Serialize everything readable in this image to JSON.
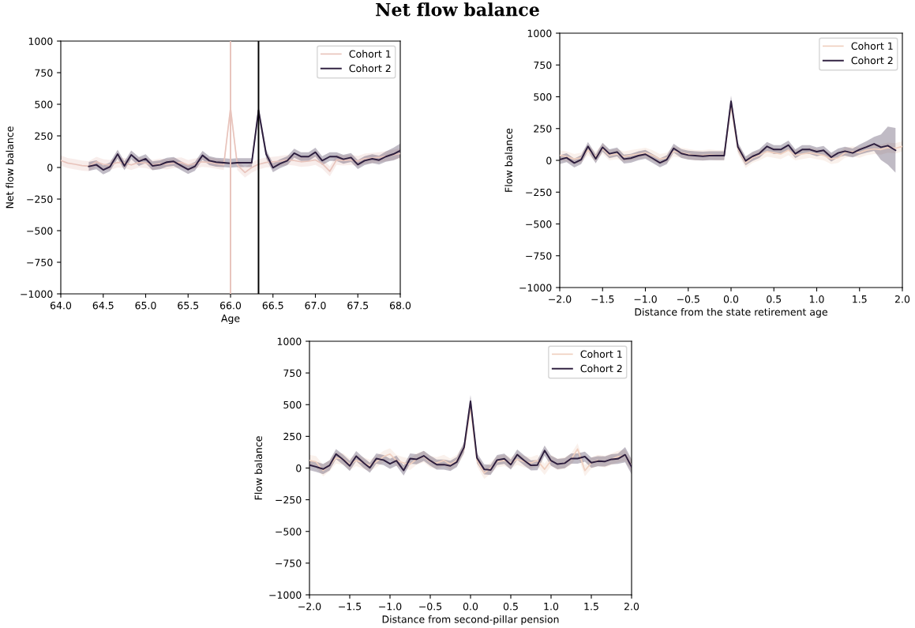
{
  "chart_data": [
    {
      "type": "line",
      "title": "Net flow balance",
      "xlabel": "Age",
      "ylabel": "Net flow balance",
      "legend": "top right",
      "grid": false,
      "xlim": [
        64,
        68
      ],
      "xticks": [
        {
          "value": 64,
          "label": "64.0"
        },
        {
          "value": 64.5,
          "label": "64.5"
        },
        {
          "value": 65,
          "label": "65.0"
        },
        {
          "value": 65.5,
          "label": "65.5"
        },
        {
          "value": 66,
          "label": "66.0"
        },
        {
          "value": 66.5,
          "label": "66.5"
        },
        {
          "value": 67,
          "label": "67.0"
        },
        {
          "value": 67.5,
          "label": "67.5"
        },
        {
          "value": 68,
          "label": "68.0"
        }
      ],
      "ylim": [
        -1000,
        1000
      ],
      "yticks": [
        {
          "value": -1000,
          "label": "−1000"
        },
        {
          "value": -750,
          "label": "−750"
        },
        {
          "value": -500,
          "label": "−500"
        },
        {
          "value": -250,
          "label": "−250"
        },
        0,
        250,
        500,
        750,
        1000
      ],
      "ref_lines": [
        {
          "axis": "x",
          "value": 66.0,
          "color": "#e8c4bc"
        },
        {
          "axis": "x",
          "value": 66.33,
          "color": "#000000"
        }
      ],
      "series": [
        {
          "name": "Cohort 1",
          "color": "#e8c4bc",
          "x": [
            64.0,
            64.08,
            64.17,
            64.25,
            64.33,
            64.42,
            64.5,
            64.58,
            64.67,
            64.75,
            64.83,
            64.92,
            65.0,
            65.08,
            65.17,
            65.25,
            65.33,
            65.42,
            65.5,
            65.58,
            65.67,
            65.75,
            65.83,
            65.92,
            66.0,
            66.08,
            66.17,
            66.25,
            66.33,
            66.42,
            66.5,
            66.58,
            66.67,
            66.75,
            66.83,
            66.92,
            67.0,
            67.08,
            67.17,
            67.25,
            67.33,
            67.42,
            67.5,
            67.58,
            67.67,
            67.75,
            67.83,
            67.92,
            68.0
          ],
          "values": [
            55,
            35,
            25,
            15,
            10,
            45,
            25,
            20,
            40,
            35,
            20,
            40,
            35,
            20,
            30,
            25,
            35,
            40,
            20,
            30,
            45,
            40,
            30,
            20,
            470,
            20,
            -40,
            0,
            25,
            40,
            45,
            50,
            60,
            55,
            45,
            50,
            60,
            30,
            -30,
            60,
            55,
            60,
            50,
            70,
            75,
            80,
            90,
            100,
            110
          ],
          "lower": [
            15,
            -5,
            -15,
            -25,
            -30,
            5,
            -15,
            -20,
            0,
            -5,
            -20,
            0,
            -5,
            -20,
            -10,
            -15,
            -5,
            0,
            -20,
            -10,
            5,
            0,
            -10,
            -20,
            430,
            -20,
            -80,
            -40,
            -15,
            0,
            5,
            10,
            20,
            15,
            5,
            10,
            20,
            -10,
            -70,
            20,
            15,
            20,
            10,
            30,
            35,
            40,
            50,
            60,
            70
          ],
          "upper": [
            95,
            75,
            65,
            55,
            50,
            85,
            65,
            60,
            80,
            75,
            60,
            80,
            75,
            60,
            70,
            65,
            75,
            80,
            60,
            70,
            85,
            80,
            70,
            60,
            510,
            60,
            0,
            40,
            65,
            80,
            85,
            90,
            100,
            95,
            85,
            90,
            100,
            70,
            10,
            100,
            95,
            100,
            90,
            110,
            115,
            120,
            130,
            140,
            150
          ]
        },
        {
          "name": "Cohort 2",
          "color": "#2d1e3e",
          "x": [
            64.33,
            64.42,
            64.5,
            64.58,
            64.67,
            64.75,
            64.83,
            64.92,
            65.0,
            65.08,
            65.17,
            65.25,
            65.33,
            65.42,
            65.5,
            65.58,
            65.67,
            65.75,
            65.83,
            65.92,
            66.0,
            66.08,
            66.17,
            66.25,
            66.33,
            66.42,
            66.5,
            66.58,
            66.67,
            66.75,
            66.83,
            66.92,
            67.0,
            67.08,
            67.17,
            67.25,
            67.33,
            67.42,
            67.5,
            67.58,
            67.67,
            67.75,
            67.83,
            67.92,
            68.0
          ],
          "values": [
            8,
            21,
            -19,
            6,
            106,
            13,
            100,
            48,
            69,
            13,
            21,
            42,
            48,
            13,
            -17,
            8,
            96,
            54,
            42,
            38,
            33,
            38,
            38,
            38,
            451,
            106,
            -2,
            29,
            54,
            113,
            86,
            86,
            121,
            54,
            86,
            86,
            65,
            79,
            23,
            54,
            69,
            58,
            86,
            106,
            134
          ],
          "lower": [
            -27,
            -14,
            -54,
            -29,
            71,
            -22,
            65,
            13,
            34,
            -22,
            -14,
            7,
            13,
            -22,
            -52,
            -27,
            61,
            19,
            7,
            3,
            -2,
            3,
            3,
            3,
            411,
            71,
            -37,
            -6,
            19,
            78,
            51,
            51,
            86,
            19,
            51,
            51,
            30,
            44,
            -12,
            19,
            34,
            23,
            46,
            56,
            79
          ],
          "upper": [
            43,
            56,
            16,
            41,
            141,
            48,
            135,
            83,
            104,
            48,
            56,
            77,
            83,
            48,
            18,
            43,
            131,
            89,
            77,
            73,
            68,
            73,
            73,
            73,
            491,
            141,
            33,
            64,
            89,
            148,
            121,
            121,
            156,
            89,
            121,
            121,
            100,
            114,
            58,
            89,
            104,
            93,
            126,
            156,
            189
          ]
        }
      ]
    },
    {
      "type": "line",
      "xlabel": "Distance from the state retirement age",
      "ylabel": "Flow balance",
      "legend": "top right",
      "grid": false,
      "xlim": [
        -2,
        2
      ],
      "xticks": [
        {
          "value": -2,
          "label": "−2.0"
        },
        {
          "value": -1.5,
          "label": "−1.5"
        },
        {
          "value": -1,
          "label": "−1.0"
        },
        {
          "value": -0.5,
          "label": "−0.5"
        },
        {
          "value": 0,
          "label": "0.0"
        },
        {
          "value": 0.5,
          "label": "0.5"
        },
        {
          "value": 1,
          "label": "1.0"
        },
        {
          "value": 1.5,
          "label": "1.5"
        },
        {
          "value": 2,
          "label": "2.0"
        }
      ],
      "ylim": [
        -1000,
        1000
      ],
      "yticks": [
        {
          "value": -1000,
          "label": "−1000"
        },
        {
          "value": -750,
          "label": "−750"
        },
        {
          "value": -500,
          "label": "−500"
        },
        {
          "value": -250,
          "label": "−250"
        },
        0,
        250,
        500,
        750,
        1000
      ],
      "series": [
        {
          "name": "Cohort 1",
          "color": "#f0d0c0",
          "x": [
            -2.0,
            -1.92,
            -1.83,
            -1.75,
            -1.67,
            -1.58,
            -1.5,
            -1.42,
            -1.33,
            -1.25,
            -1.17,
            -1.08,
            -1.0,
            -0.92,
            -0.83,
            -0.75,
            -0.67,
            -0.58,
            -0.5,
            -0.42,
            -0.33,
            -0.25,
            -0.17,
            -0.08,
            0.0,
            0.08,
            0.17,
            0.25,
            0.33,
            0.42,
            0.5,
            0.58,
            0.67,
            0.75,
            0.83,
            0.92,
            1.0,
            1.08,
            1.17,
            1.25,
            1.33,
            1.42,
            1.5,
            1.58,
            1.67,
            1.75,
            1.83,
            1.92,
            2.0
          ],
          "values": [
            40,
            30,
            10,
            20,
            80,
            30,
            90,
            40,
            50,
            30,
            40,
            50,
            60,
            40,
            10,
            20,
            70,
            60,
            50,
            40,
            40,
            45,
            40,
            40,
            430,
            90,
            -20,
            20,
            40,
            70,
            60,
            50,
            80,
            40,
            50,
            60,
            50,
            40,
            10,
            20,
            60,
            70,
            60,
            80,
            90,
            85,
            100,
            95,
            110
          ],
          "lower": [
            0,
            -10,
            -30,
            -20,
            40,
            -10,
            50,
            0,
            10,
            -10,
            0,
            10,
            20,
            0,
            -30,
            -20,
            30,
            20,
            10,
            0,
            0,
            5,
            0,
            0,
            390,
            50,
            -60,
            -20,
            0,
            30,
            20,
            10,
            40,
            0,
            10,
            20,
            10,
            0,
            -30,
            -20,
            20,
            30,
            20,
            40,
            50,
            45,
            60,
            55,
            70
          ],
          "upper": [
            80,
            70,
            50,
            60,
            120,
            70,
            130,
            80,
            90,
            70,
            80,
            90,
            100,
            80,
            50,
            60,
            110,
            100,
            90,
            80,
            80,
            85,
            80,
            80,
            470,
            130,
            20,
            60,
            80,
            110,
            100,
            90,
            120,
            80,
            90,
            100,
            90,
            80,
            50,
            60,
            100,
            110,
            100,
            120,
            130,
            125,
            140,
            135,
            150
          ]
        },
        {
          "name": "Cohort 2",
          "color": "#2d1e3e",
          "x": [
            -2.0,
            -1.92,
            -1.83,
            -1.75,
            -1.67,
            -1.58,
            -1.5,
            -1.42,
            -1.33,
            -1.25,
            -1.17,
            -1.08,
            -1.0,
            -0.92,
            -0.83,
            -0.75,
            -0.67,
            -0.58,
            -0.5,
            -0.42,
            -0.33,
            -0.25,
            -0.17,
            -0.08,
            0.0,
            0.08,
            0.17,
            0.25,
            0.33,
            0.42,
            0.5,
            0.58,
            0.67,
            0.75,
            0.83,
            0.92,
            1.0,
            1.08,
            1.17,
            1.25,
            1.33,
            1.42,
            1.5,
            1.58,
            1.67,
            1.75,
            1.83,
            1.92
          ],
          "values": [
            6,
            21,
            -21,
            6,
            110,
            12,
            103,
            52,
            66,
            10,
            17,
            37,
            48,
            17,
            -19,
            6,
            95,
            54,
            41,
            37,
            33,
            37,
            37,
            37,
            465,
            105,
            -4,
            31,
            54,
            110,
            85,
            85,
            120,
            52,
            85,
            85,
            68,
            79,
            25,
            58,
            72,
            58,
            85,
            105,
            130,
            103,
            116,
            79
          ],
          "lower": [
            -29,
            -14,
            -56,
            -29,
            75,
            -23,
            68,
            17,
            31,
            -25,
            -18,
            2,
            13,
            -18,
            -54,
            -29,
            60,
            19,
            6,
            2,
            -2,
            2,
            2,
            2,
            420,
            70,
            -39,
            -4,
            19,
            75,
            50,
            50,
            85,
            17,
            50,
            50,
            33,
            44,
            -10,
            23,
            37,
            23,
            45,
            60,
            75,
            3,
            -34,
            -96
          ],
          "upper": [
            41,
            56,
            14,
            41,
            145,
            47,
            138,
            87,
            101,
            45,
            52,
            72,
            83,
            52,
            16,
            41,
            130,
            89,
            76,
            72,
            68,
            72,
            72,
            72,
            510,
            140,
            31,
            66,
            89,
            145,
            120,
            120,
            155,
            87,
            120,
            120,
            103,
            114,
            60,
            93,
            107,
            93,
            125,
            150,
            185,
            203,
            266,
            254
          ]
        }
      ]
    },
    {
      "type": "line",
      "xlabel": "Distance from second-pillar pension",
      "ylabel": "Flow balance",
      "legend": "top right",
      "grid": false,
      "xlim": [
        -2,
        2
      ],
      "xticks": [
        {
          "value": -2,
          "label": "−2.0"
        },
        {
          "value": -1.5,
          "label": "−1.5"
        },
        {
          "value": -1,
          "label": "−1.0"
        },
        {
          "value": -0.5,
          "label": "−0.5"
        },
        {
          "value": 0,
          "label": "0.0"
        },
        {
          "value": 0.5,
          "label": "0.5"
        },
        {
          "value": 1,
          "label": "1.0"
        },
        {
          "value": 1.5,
          "label": "1.5"
        },
        {
          "value": 2,
          "label": "2.0"
        }
      ],
      "ylim": [
        -1000,
        1000
      ],
      "yticks": [
        {
          "value": -1000,
          "label": "−1000"
        },
        {
          "value": -750,
          "label": "−750"
        },
        {
          "value": -500,
          "label": "−500"
        },
        {
          "value": -250,
          "label": "−250"
        },
        0,
        250,
        500,
        750,
        1000
      ],
      "series": [
        {
          "name": "Cohort 1",
          "color": "#f0d0c0",
          "x": [
            -2.0,
            -1.92,
            -1.83,
            -1.75,
            -1.67,
            -1.58,
            -1.5,
            -1.42,
            -1.33,
            -1.25,
            -1.17,
            -1.08,
            -1.0,
            -0.92,
            -0.83,
            -0.75,
            -0.67,
            -0.58,
            -0.5,
            -0.42,
            -0.33,
            -0.25,
            -0.17,
            -0.08,
            0.0,
            0.08,
            0.17,
            0.25,
            0.33,
            0.42,
            0.5,
            0.58,
            0.67,
            0.75,
            0.83,
            0.92,
            1.0,
            1.08,
            1.17,
            1.25,
            1.33,
            1.42,
            1.5,
            1.58,
            1.67,
            1.75,
            1.83,
            1.92,
            2.0
          ],
          "values": [
            60,
            50,
            -20,
            20,
            80,
            70,
            30,
            60,
            40,
            20,
            50,
            90,
            110,
            60,
            40,
            30,
            70,
            90,
            50,
            40,
            60,
            30,
            60,
            150,
            480,
            60,
            -40,
            0,
            50,
            60,
            40,
            70,
            50,
            40,
            60,
            -10,
            60,
            null,
            40,
            70,
            150,
            -20,
            40,
            60,
            null,
            70,
            90,
            100,
            20
          ],
          "lower": [
            15,
            5,
            -65,
            -25,
            35,
            25,
            -15,
            15,
            -5,
            -25,
            5,
            45,
            65,
            15,
            -5,
            -15,
            25,
            45,
            5,
            -5,
            15,
            -15,
            15,
            105,
            435,
            15,
            -85,
            -45,
            5,
            15,
            -5,
            25,
            5,
            -5,
            15,
            -55,
            15,
            -15,
            -5,
            25,
            105,
            -65,
            -5,
            15,
            5,
            25,
            45,
            55,
            -25
          ],
          "upper": [
            105,
            95,
            25,
            65,
            125,
            115,
            75,
            105,
            85,
            65,
            95,
            135,
            155,
            105,
            85,
            75,
            115,
            135,
            95,
            85,
            105,
            75,
            105,
            195,
            525,
            105,
            5,
            45,
            95,
            105,
            85,
            115,
            95,
            85,
            105,
            35,
            105,
            75,
            85,
            115,
            195,
            25,
            85,
            105,
            95,
            115,
            135,
            145,
            65
          ]
        },
        {
          "name": "Cohort 2",
          "color": "#2d1e3e",
          "x": [
            -2.0,
            -1.92,
            -1.83,
            -1.75,
            -1.67,
            -1.58,
            -1.5,
            -1.42,
            -1.33,
            -1.25,
            -1.17,
            -1.08,
            -1.0,
            -0.92,
            -0.83,
            -0.75,
            -0.67,
            -0.58,
            -0.5,
            -0.42,
            -0.33,
            -0.25,
            -0.17,
            -0.08,
            0.0,
            0.08,
            0.17,
            0.25,
            0.33,
            0.42,
            0.5,
            0.58,
            0.67,
            0.75,
            0.83,
            0.92,
            1.0,
            1.08,
            1.17,
            1.25,
            1.33,
            1.42,
            1.5,
            1.58,
            1.67,
            1.75,
            1.83,
            1.92,
            2.0
          ],
          "values": [
            23,
            10,
            -8,
            21,
            110,
            65,
            17,
            94,
            42,
            2,
            75,
            63,
            33,
            58,
            -19,
            75,
            69,
            96,
            58,
            27,
            27,
            17,
            48,
            163,
            527,
            79,
            -10,
            -15,
            63,
            73,
            27,
            106,
            58,
            21,
            23,
            138,
            58,
            31,
            38,
            75,
            75,
            90,
            42,
            54,
            52,
            69,
            73,
            105,
            10
          ],
          "lower": [
            -17,
            -30,
            -48,
            -19,
            70,
            25,
            -23,
            54,
            2,
            -38,
            35,
            23,
            -7,
            18,
            -59,
            35,
            29,
            56,
            18,
            -13,
            -13,
            -23,
            8,
            123,
            477,
            39,
            -50,
            -55,
            23,
            33,
            -13,
            66,
            18,
            -19,
            -17,
            98,
            18,
            -9,
            -2,
            35,
            35,
            50,
            2,
            14,
            12,
            29,
            33,
            45,
            -50
          ],
          "upper": [
            63,
            50,
            32,
            61,
            150,
            105,
            57,
            134,
            82,
            42,
            115,
            103,
            73,
            98,
            21,
            115,
            109,
            136,
            98,
            67,
            67,
            57,
            88,
            203,
            577,
            119,
            30,
            25,
            103,
            113,
            67,
            146,
            98,
            61,
            63,
            178,
            98,
            71,
            78,
            115,
            115,
            130,
            82,
            94,
            92,
            109,
            113,
            165,
            70
          ]
        }
      ]
    }
  ]
}
